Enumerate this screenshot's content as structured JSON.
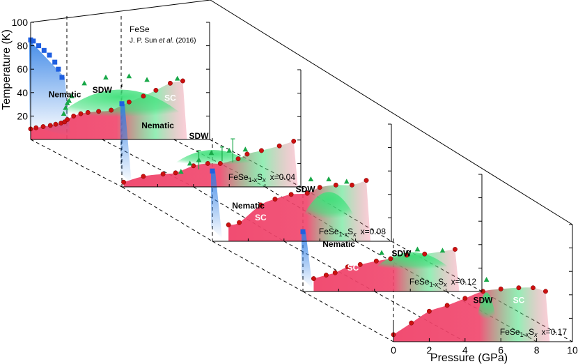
{
  "chart_data": {
    "type": "scatter",
    "xlabel": "Pressure (GPa)",
    "ylabel": "Temperature (K)",
    "xlim": [
      0,
      10
    ],
    "ylim": [
      0,
      100
    ],
    "x_ticks": [
      "0",
      "2",
      "4",
      "6",
      "8",
      "10"
    ],
    "y_ticks": [
      "20",
      "40",
      "60",
      "80",
      "100"
    ],
    "reference": {
      "compound": "FeSe",
      "citation_prefix": "J. P. Sun ",
      "citation_italic": "et al.",
      "citation_suffix": " (2016)"
    },
    "phase_labels": {
      "nematic": "Nematic",
      "sdw": "SDW",
      "sc": "SC"
    },
    "colors": {
      "nematic": "#1f5fe0",
      "sdw": "#18a848",
      "sc": "#cc1010",
      "sc_fill": "#f0436a",
      "sdw_fill": "#3ee07a",
      "nematic_fill": "#2f7fe6"
    },
    "panels": [
      {
        "comp_label": "FeSe",
        "x_label": "",
        "nematic": [
          [
            0.0,
            85
          ],
          [
            0.15,
            84
          ],
          [
            0.45,
            80
          ],
          [
            0.75,
            76
          ],
          [
            1.05,
            72
          ],
          [
            1.35,
            66
          ],
          [
            1.55,
            60
          ],
          [
            1.75,
            53
          ]
        ],
        "sdw": [
          [
            1.85,
            22
          ],
          [
            1.95,
            27
          ],
          [
            2.05,
            31
          ],
          [
            2.15,
            33
          ],
          [
            2.3,
            37
          ],
          [
            3.0,
            48
          ],
          [
            4.2,
            53
          ],
          [
            5.5,
            54
          ],
          [
            6.5,
            51
          ],
          [
            8.2,
            52
          ]
        ],
        "sc": [
          [
            0.0,
            9
          ],
          [
            0.3,
            10
          ],
          [
            0.7,
            11
          ],
          [
            1.1,
            12
          ],
          [
            1.4,
            13
          ],
          [
            1.7,
            14
          ],
          [
            1.9,
            15
          ],
          [
            2.05,
            17
          ],
          [
            2.4,
            20
          ],
          [
            2.8,
            22
          ],
          [
            3.2,
            23
          ],
          [
            3.8,
            24
          ],
          [
            4.5,
            25
          ],
          [
            5.5,
            32
          ],
          [
            6.3,
            37
          ],
          [
            7.0,
            42
          ],
          [
            7.8,
            48
          ],
          [
            8.5,
            50
          ]
        ]
      },
      {
        "comp_label": "FeSe1-xSx",
        "x_label": "x=0.04",
        "nematic": [
          [
            0.0,
            71
          ]
        ],
        "sdw": [
          [
            3.3,
            13
          ],
          [
            3.8,
            20
          ],
          [
            4.3,
            23
          ],
          [
            5.0,
            29
          ],
          [
            6.0,
            31
          ],
          [
            6.9,
            32
          ]
        ],
        "sc": [
          [
            0.1,
            4
          ],
          [
            1.2,
            9
          ],
          [
            2.3,
            11
          ],
          [
            3.0,
            12
          ],
          [
            4.0,
            18
          ],
          [
            4.8,
            20
          ],
          [
            5.5,
            20
          ],
          [
            6.5,
            24
          ],
          [
            7.0,
            28
          ],
          [
            7.8,
            31
          ],
          [
            8.8,
            35
          ],
          [
            9.6,
            39
          ]
        ]
      },
      {
        "comp_label": "FeSe1-xSx",
        "x_label": "x=0.08",
        "nematic": [
          [
            0.0,
            60
          ]
        ],
        "sdw": [
          [
            5.5,
            53
          ],
          [
            6.5,
            53
          ],
          [
            7.5,
            51
          ]
        ],
        "sc": [
          [
            0.9,
            14
          ],
          [
            1.5,
            16
          ],
          [
            2.7,
            31
          ],
          [
            3.5,
            36
          ],
          [
            4.4,
            40
          ],
          [
            5.3,
            41
          ],
          [
            6.0,
            46
          ],
          [
            6.9,
            48
          ],
          [
            7.8,
            48
          ],
          [
            8.6,
            52
          ]
        ]
      },
      {
        "comp_label": "FeSe1-xSx",
        "x_label": "x=0.12",
        "nematic": [
          [
            0.0,
            51
          ]
        ],
        "sdw": [
          [
            4.4,
            33
          ],
          [
            6.4,
            36
          ],
          [
            7.8,
            35
          ]
        ],
        "sc": [
          [
            0.6,
            11
          ],
          [
            1.3,
            14
          ],
          [
            1.8,
            16
          ],
          [
            2.5,
            21
          ],
          [
            3.2,
            23
          ],
          [
            4.1,
            26
          ],
          [
            4.9,
            28
          ],
          [
            5.8,
            31
          ],
          [
            6.8,
            32
          ],
          [
            8.5,
            36
          ]
        ]
      },
      {
        "comp_label": "FeSe1-xSx",
        "x_label": "x=0.17",
        "nematic": [],
        "sdw": [
          [
            5.2,
            53
          ]
        ],
        "sc": [
          [
            0.0,
            6
          ],
          [
            1.0,
            16
          ],
          [
            2.0,
            26
          ],
          [
            3.0,
            31
          ],
          [
            4.0,
            37
          ],
          [
            5.0,
            43
          ],
          [
            6.0,
            45
          ],
          [
            7.0,
            46
          ],
          [
            7.8,
            46
          ],
          [
            8.5,
            43
          ]
        ]
      }
    ]
  }
}
